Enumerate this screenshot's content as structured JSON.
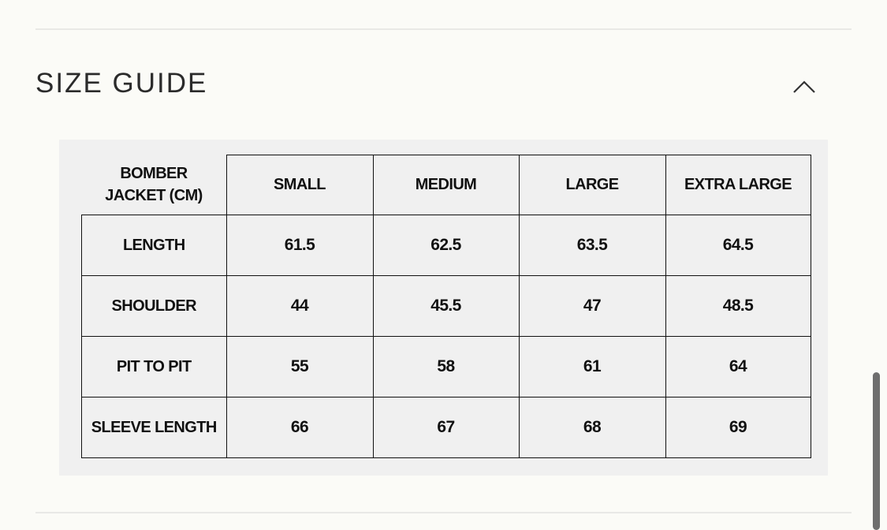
{
  "header": {
    "title": "SIZE GUIDE"
  },
  "table": {
    "columns": [
      "BOMBER JACKET (CM)",
      "SMALL",
      "MEDIUM",
      "LARGE",
      "EXTRA LARGE"
    ],
    "rows": [
      [
        "LENGTH",
        "61.5",
        "62.5",
        "63.5",
        "64.5"
      ],
      [
        "SHOULDER",
        "44",
        "45.5",
        "47",
        "48.5"
      ],
      [
        "PIT TO PIT",
        "55",
        "58",
        "61",
        "64"
      ],
      [
        "SLEEVE LENGTH",
        "66",
        "67",
        "68",
        "69"
      ]
    ]
  }
}
